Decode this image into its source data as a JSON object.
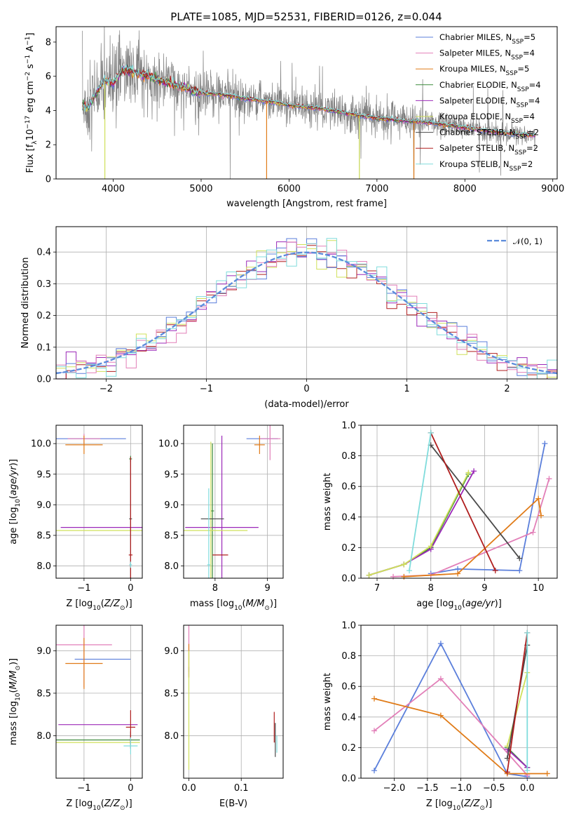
{
  "colors": {
    "Chabrier MILES": "#5b7fdb",
    "Salpeter MILES": "#e27fb8",
    "Kroupa MILES": "#e07b18",
    "Chabrier ELODIE": "#3c8a3c",
    "Salpeter ELODIE": "#9b28b8",
    "Kroupa ELODIE": "#cfe05a",
    "Chabrier STELIB": "#4a4a4a",
    "Salpeter STELIB": "#b01e1e",
    "Kroupa STELIB": "#80dcdc",
    "observed": "#808080",
    "gaussian": "#5b8bdb"
  },
  "chart_data": [
    {
      "id": "spectrum",
      "type": "line",
      "title": "PLATE=1085, MJD=52531, FIBERID=0126, z=0.044",
      "xlabel": "wavelength [Angstrom, rest frame]",
      "ylabel": "Flux [f_λ 10^-17 erg cm^-2 s^-1 A^-1]",
      "xlim": [
        3350,
        9050
      ],
      "ylim": [
        0,
        8.9
      ],
      "xticks": [
        4000,
        5000,
        6000,
        7000,
        8000,
        9000
      ],
      "yticks": [
        0,
        2,
        4,
        6,
        8
      ],
      "legend": {
        "position": "top-right",
        "entries": [
          {
            "model": "Chabrier MILES",
            "label": "Chabrier MILES, N",
            "sub": "SSP",
            "suffix": "=5"
          },
          {
            "model": "Salpeter MILES",
            "label": "Salpeter MILES, N",
            "sub": "SSP",
            "suffix": "=4"
          },
          {
            "model": "Kroupa MILES",
            "label": "Kroupa MILES, N",
            "sub": "SSP",
            "suffix": "=5"
          },
          {
            "model": "Chabrier ELODIE",
            "label": "Chabrier ELODIE, N",
            "sub": "SSP",
            "suffix": "=4"
          },
          {
            "model": "Salpeter ELODIE",
            "label": "Salpeter ELODIE, N",
            "sub": "SSP",
            "suffix": "=4"
          },
          {
            "model": "Kroupa ELODIE",
            "label": "Kroupa ELODIE, N",
            "sub": "SSP",
            "suffix": "=4"
          },
          {
            "model": "Chabrier STELIB",
            "label": "Chabrier STELIB, N",
            "sub": "SSP",
            "suffix": "=2"
          },
          {
            "model": "Salpeter STELIB",
            "label": "Salpeter STELIB, N",
            "sub": "SSP",
            "suffix": "=2"
          },
          {
            "model": "Kroupa STELIB",
            "label": "Kroupa STELIB, N",
            "sub": "SSP",
            "suffix": "=2"
          }
        ]
      },
      "model_continuum": {
        "x": [
          3650,
          3700,
          3800,
          3900,
          4000,
          4100,
          4200,
          4300,
          4400,
          4500,
          4700,
          5000,
          5200,
          5500,
          5800,
          6000,
          6300,
          6600,
          6800,
          7000,
          7300,
          7600,
          8000,
          8400,
          8800
        ],
        "y": [
          4.3,
          4.1,
          5.0,
          5.7,
          5.6,
          6.4,
          6.3,
          6.1,
          6.1,
          5.8,
          5.5,
          5.0,
          4.95,
          4.7,
          4.5,
          4.3,
          4.15,
          3.9,
          3.7,
          3.55,
          3.4,
          3.3,
          3.0,
          2.7,
          2.55
        ]
      },
      "dips": [
        {
          "x": 3905,
          "y": 0,
          "series": "Kroupa ELODIE"
        },
        {
          "x": 5745,
          "y": 0,
          "series": "Kroupa MILES"
        },
        {
          "x": 6800,
          "y": 0,
          "series": "Kroupa ELODIE"
        },
        {
          "x": 7420,
          "y": 0,
          "series": "Kroupa MILES"
        }
      ]
    },
    {
      "id": "residuals",
      "type": "line",
      "xlabel": "(data-model)/error",
      "ylabel": "Normed distribution",
      "xlim": [
        -2.5,
        2.5
      ],
      "ylim": [
        0,
        0.48
      ],
      "xticks": [
        -2,
        -1,
        0,
        1,
        2
      ],
      "yticks": [
        0,
        0.1,
        0.2,
        0.3,
        0.4
      ],
      "grid": true,
      "bin_width": 0.1,
      "legend": {
        "position": "top-right",
        "label": "𝒩(0, 1)"
      }
    },
    {
      "id": "age-vs-Z",
      "type": "scatter",
      "xlabel": "Z [log10(Z/Z⊙)]",
      "ylabel": "age [log10(age/yr)]",
      "xlim": [
        -1.6,
        0.25
      ],
      "ylim": [
        7.8,
        10.3
      ],
      "xticks": [
        -1,
        0
      ],
      "yticks": [
        8.0,
        8.5,
        9.0,
        9.5,
        10.0
      ],
      "grid": true,
      "points": [
        {
          "series": "Chabrier MILES",
          "x": -1.0,
          "y": 10.08,
          "xerr": 0.9,
          "yerr": 0.0
        },
        {
          "series": "Salpeter MILES",
          "x": -1.0,
          "y": 10.08,
          "xerr": 0.35,
          "yerr": 0.08
        },
        {
          "series": "Kroupa MILES",
          "x": -1.0,
          "y": 9.98,
          "xerr": 0.4,
          "yerr": 0.15
        },
        {
          "series": "Chabrier ELODIE",
          "x": 0.0,
          "y": 9.75,
          "xerr": 0.03,
          "yerr": 0.05
        },
        {
          "series": "Salpeter ELODIE",
          "x": -0.25,
          "y": 8.63,
          "xerr": 1.25,
          "yerr": 0.0
        },
        {
          "series": "Kroupa ELODIE",
          "x": -0.25,
          "y": 8.58,
          "xerr": 1.55,
          "yerr": 0.0
        },
        {
          "series": "Chabrier STELIB",
          "x": 0.0,
          "y": 8.77,
          "xerr": 0.03,
          "yerr": 1.0
        },
        {
          "series": "Salpeter STELIB",
          "x": 0.0,
          "y": 8.18,
          "xerr": 0.04,
          "yerr": 1.6
        },
        {
          "series": "Kroupa STELIB",
          "x": 0.0,
          "y": 8.02,
          "xerr": 0.03,
          "yerr": 0.05
        }
      ]
    },
    {
      "id": "age-vs-mass",
      "type": "scatter",
      "xlabel": "mass [log10(M/M⊙)]",
      "ylabel": "",
      "xlim": [
        7.4,
        9.3
      ],
      "ylim": [
        7.8,
        10.3
      ],
      "xticks": [
        8,
        9
      ],
      "yticks": [
        8.0,
        8.5,
        9.0,
        9.5,
        10.0
      ],
      "grid": true,
      "points": [
        {
          "series": "Chabrier MILES",
          "x": 8.9,
          "y": 10.08,
          "xerr": 0.3,
          "yerr": 0.0
        },
        {
          "series": "Salpeter MILES",
          "x": 9.05,
          "y": 10.08,
          "xerr": 0.2,
          "yerr": 0.35
        },
        {
          "series": "Kroupa MILES",
          "x": 8.85,
          "y": 9.98,
          "xerr": 0.1,
          "yerr": 0.15
        },
        {
          "series": "Chabrier ELODIE",
          "x": 7.95,
          "y": 8.9,
          "xerr": 0.03,
          "yerr": 1.1
        },
        {
          "series": "Salpeter ELODIE",
          "x": 8.13,
          "y": 8.63,
          "xerr": 0.7,
          "yerr": 1.5
        },
        {
          "series": "Kroupa ELODIE",
          "x": 7.92,
          "y": 8.58,
          "xerr": 0.7,
          "yerr": 1.45
        },
        {
          "series": "Chabrier STELIB",
          "x": 7.95,
          "y": 8.77,
          "xerr": 0.22,
          "yerr": 0.0
        },
        {
          "series": "Salpeter STELIB",
          "x": 8.1,
          "y": 8.18,
          "xerr": 0.15,
          "yerr": 0.0
        },
        {
          "series": "Kroupa STELIB",
          "x": 7.88,
          "y": 8.02,
          "xerr": 0.03,
          "yerr": 1.25
        }
      ]
    },
    {
      "id": "weight-vs-age",
      "type": "line",
      "xlabel": "age [log10(age/yr)]",
      "ylabel": "mass weight",
      "xlim": [
        6.7,
        10.35
      ],
      "ylim": [
        0,
        1.0
      ],
      "xticks": [
        7,
        8,
        9,
        10
      ],
      "yticks": [
        0.0,
        0.2,
        0.4,
        0.6,
        0.8,
        1.0
      ],
      "grid": true,
      "series": [
        {
          "name": "Chabrier MILES",
          "x": [
            8.0,
            8.5,
            9.65,
            10.12
          ],
          "y": [
            0.03,
            0.06,
            0.05,
            0.88
          ]
        },
        {
          "name": "Salpeter MILES",
          "x": [
            7.3,
            8.0,
            9.9,
            10.2
          ],
          "y": [
            0.01,
            0.02,
            0.3,
            0.65
          ]
        },
        {
          "name": "Kroupa MILES",
          "x": [
            7.5,
            8.5,
            10.0,
            10.05
          ],
          "y": [
            0.01,
            0.03,
            0.52,
            0.41
          ]
        },
        {
          "name": "Chabrier ELODIE",
          "x": [
            6.85,
            7.5,
            8.0,
            8.7
          ],
          "y": [
            0.02,
            0.09,
            0.2,
            0.68
          ]
        },
        {
          "name": "Salpeter ELODIE",
          "x": [
            6.85,
            7.5,
            8.0,
            8.8
          ],
          "y": [
            0.02,
            0.09,
            0.19,
            0.7
          ]
        },
        {
          "name": "Kroupa ELODIE",
          "x": [
            6.85,
            7.5,
            8.0,
            8.7
          ],
          "y": [
            0.02,
            0.09,
            0.21,
            0.69
          ]
        },
        {
          "name": "Chabrier STELIB",
          "x": [
            8.0,
            9.65
          ],
          "y": [
            0.87,
            0.13
          ]
        },
        {
          "name": "Salpeter STELIB",
          "x": [
            8.0,
            9.2
          ],
          "y": [
            0.95,
            0.05
          ]
        },
        {
          "name": "Kroupa STELIB",
          "x": [
            7.6,
            8.0
          ],
          "y": [
            0.05,
            0.95
          ]
        }
      ]
    },
    {
      "id": "mass-vs-Z",
      "type": "scatter",
      "xlabel": "Z [log10(Z/Z⊙)]",
      "ylabel": "mass [log10(M/M⊙)]",
      "xlim": [
        -1.6,
        0.25
      ],
      "ylim": [
        7.5,
        9.3
      ],
      "xticks": [
        -1,
        0
      ],
      "yticks": [
        8.0,
        8.5,
        9.0
      ],
      "grid": true,
      "points": [
        {
          "series": "Chabrier MILES",
          "x": -0.6,
          "y": 8.9,
          "xerr": 0.6,
          "yerr": 0.0
        },
        {
          "series": "Salpeter MILES",
          "x": -1.0,
          "y": 9.07,
          "xerr": 0.6,
          "yerr": 0.5
        },
        {
          "series": "Kroupa MILES",
          "x": -1.0,
          "y": 8.85,
          "xerr": 0.4,
          "yerr": 0.3
        },
        {
          "series": "Chabrier ELODIE",
          "x": -0.7,
          "y": 7.95,
          "xerr": 0.9,
          "yerr": 0.0
        },
        {
          "series": "Salpeter ELODIE",
          "x": -0.7,
          "y": 8.13,
          "xerr": 0.85,
          "yerr": 0.0
        },
        {
          "series": "Kroupa ELODIE",
          "x": -0.7,
          "y": 7.92,
          "xerr": 0.9,
          "yerr": 0.0
        },
        {
          "series": "Chabrier STELIB",
          "x": 0.0,
          "y": 7.95,
          "xerr": 0.02,
          "yerr": 0.1
        },
        {
          "series": "Salpeter STELIB",
          "x": 0.0,
          "y": 8.1,
          "xerr": 0.1,
          "yerr": 0.2
        },
        {
          "series": "Kroupa STELIB",
          "x": 0.0,
          "y": 7.88,
          "xerr": 0.15,
          "yerr": 0.1
        }
      ]
    },
    {
      "id": "mass-vs-EBV",
      "type": "scatter",
      "xlabel": "E(B-V)",
      "ylabel": "",
      "xlim": [
        -0.01,
        0.18
      ],
      "ylim": [
        7.5,
        9.3
      ],
      "xticks": [
        0.0,
        0.1
      ],
      "yticks": [
        8.0,
        8.5,
        9.0
      ],
      "grid": true,
      "points": [
        {
          "series": "Salpeter MILES",
          "x": 0.0,
          "y": 9.05,
          "yerr": 0.3
        },
        {
          "series": "Kroupa MILES",
          "x": 0.0,
          "y": 8.88,
          "yerr": 0.2
        },
        {
          "series": "Salpeter ELODIE",
          "x": 0.0,
          "y": 8.75,
          "yerr": 0.06
        },
        {
          "series": "Kroupa ELODIE",
          "x": 0.0,
          "y": 8.3,
          "yerr": 0.7
        },
        {
          "series": "Salpeter STELIB",
          "x": 0.163,
          "y": 8.1,
          "yerr": 0.18
        },
        {
          "series": "Chabrier STELIB",
          "x": 0.165,
          "y": 7.95,
          "yerr": 0.2
        },
        {
          "series": "Kroupa STELIB",
          "x": 0.168,
          "y": 7.9,
          "yerr": 0.1
        }
      ]
    },
    {
      "id": "weight-vs-Z",
      "type": "line",
      "xlabel": "Z [log10(Z/Z⊙)]",
      "ylabel": "mass weight",
      "xlim": [
        -2.5,
        0.45
      ],
      "ylim": [
        0,
        1.0
      ],
      "xticks": [
        -2.0,
        -1.5,
        -1.0,
        -0.5,
        0.0
      ],
      "yticks": [
        0.0,
        0.2,
        0.4,
        0.6,
        0.8,
        1.0
      ],
      "grid": true,
      "series": [
        {
          "name": "Chabrier MILES",
          "x": [
            -2.3,
            -1.3,
            -0.3,
            0.0
          ],
          "y": [
            0.05,
            0.88,
            0.03,
            0.01
          ]
        },
        {
          "name": "Salpeter MILES",
          "x": [
            -2.3,
            -1.3,
            0.0
          ],
          "y": [
            0.31,
            0.65,
            0.02
          ]
        },
        {
          "name": "Kroupa MILES",
          "x": [
            -2.3,
            -1.3,
            -0.3,
            0.3
          ],
          "y": [
            0.52,
            0.41,
            0.03,
            0.03
          ]
        },
        {
          "name": "Chabrier ELODIE",
          "x": [
            -0.3,
            0.0
          ],
          "y": [
            0.2,
            0.07
          ]
        },
        {
          "name": "Salpeter ELODIE",
          "x": [
            -0.3,
            0.0
          ],
          "y": [
            0.19,
            0.07
          ]
        },
        {
          "name": "Kroupa ELODIE",
          "x": [
            -0.3,
            0.0
          ],
          "y": [
            0.21,
            0.69
          ]
        },
        {
          "name": "Chabrier STELIB",
          "x": [
            -0.3,
            0.0
          ],
          "y": [
            0.13,
            0.87
          ]
        },
        {
          "name": "Salpeter STELIB",
          "x": [
            -0.3,
            0.0
          ],
          "y": [
            0.04,
            0.95
          ]
        },
        {
          "name": "Kroupa STELIB",
          "x": [
            0.0,
            0.0
          ],
          "y": [
            0.05,
            0.95
          ]
        }
      ]
    }
  ],
  "text": {
    "title": "PLATE=1085, MJD=52531, FIBERID=0126, z=0.044",
    "spec_xlabel": "wavelength [Angstrom, rest frame]",
    "resid_xlabel": "(data-model)/error",
    "resid_ylabel": "Normed distribution",
    "mass_weight": "mass weight",
    "ebv": "E(B-V)",
    "gauss_legend": "𝒩(0, 1)"
  }
}
